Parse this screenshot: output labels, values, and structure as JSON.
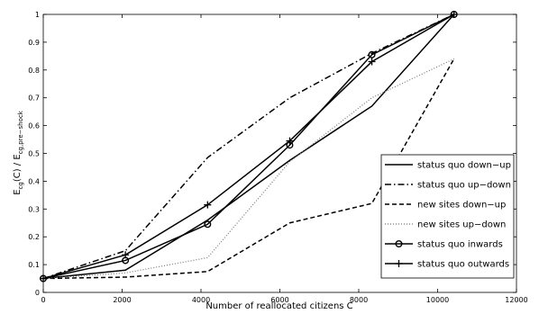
{
  "chart_data": {
    "type": "line",
    "xlabel": "Number of reallocated citizens C",
    "ylabel": {
      "prefix": "E",
      "prefix_sub": "cg",
      "middle": "(C) / E",
      "suffix_sub": "cg,pre−shock"
    },
    "xlim": [
      0,
      12000
    ],
    "ylim": [
      0,
      1
    ],
    "x_ticks": [
      0,
      2000,
      4000,
      6000,
      8000,
      10000,
      12000
    ],
    "y_ticks": [
      0,
      0.1,
      0.2,
      0.3,
      0.4,
      0.5,
      0.6,
      0.7,
      0.8,
      0.9,
      1
    ],
    "x_tick_labels": [
      "0",
      "2000",
      "4000",
      "6000",
      "8000",
      "10000",
      "12000"
    ],
    "y_tick_labels": [
      "0",
      "0.1",
      "0.2",
      "0.3",
      "0.4",
      "0.5",
      "0.6",
      "0.7",
      "0.8",
      "0.9",
      "1"
    ],
    "legend_position": "bottom-right",
    "grid": false,
    "x": [
      0,
      2083,
      4167,
      6250,
      8333,
      10416
    ],
    "series": [
      {
        "name": "status quo down−up",
        "style": "solid",
        "marker": "none",
        "color": "#000000",
        "values": [
          0.05,
          0.08,
          0.26,
          0.475,
          0.67,
          1.0
        ]
      },
      {
        "name": "status quo up−down",
        "style": "dashdot",
        "marker": "none",
        "color": "#000000",
        "values": [
          0.05,
          0.15,
          0.485,
          0.7,
          0.86,
          1.0
        ]
      },
      {
        "name": "new sites down−up",
        "style": "dashed",
        "marker": "none",
        "color": "#000000",
        "values": [
          0.05,
          0.055,
          0.075,
          0.25,
          0.32,
          0.84
        ]
      },
      {
        "name": "new sites up−down",
        "style": "dotted",
        "marker": "none",
        "color": "#777777",
        "values": [
          0.05,
          0.07,
          0.125,
          0.47,
          0.7,
          0.84
        ]
      },
      {
        "name": "status quo inwards",
        "style": "solid",
        "marker": "circle",
        "color": "#000000",
        "values": [
          0.05,
          0.115,
          0.245,
          0.53,
          0.855,
          1.0
        ]
      },
      {
        "name": "status quo outwards",
        "style": "solid",
        "marker": "plus",
        "color": "#000000",
        "values": [
          0.05,
          0.135,
          0.315,
          0.545,
          0.83,
          1.0
        ]
      }
    ]
  }
}
